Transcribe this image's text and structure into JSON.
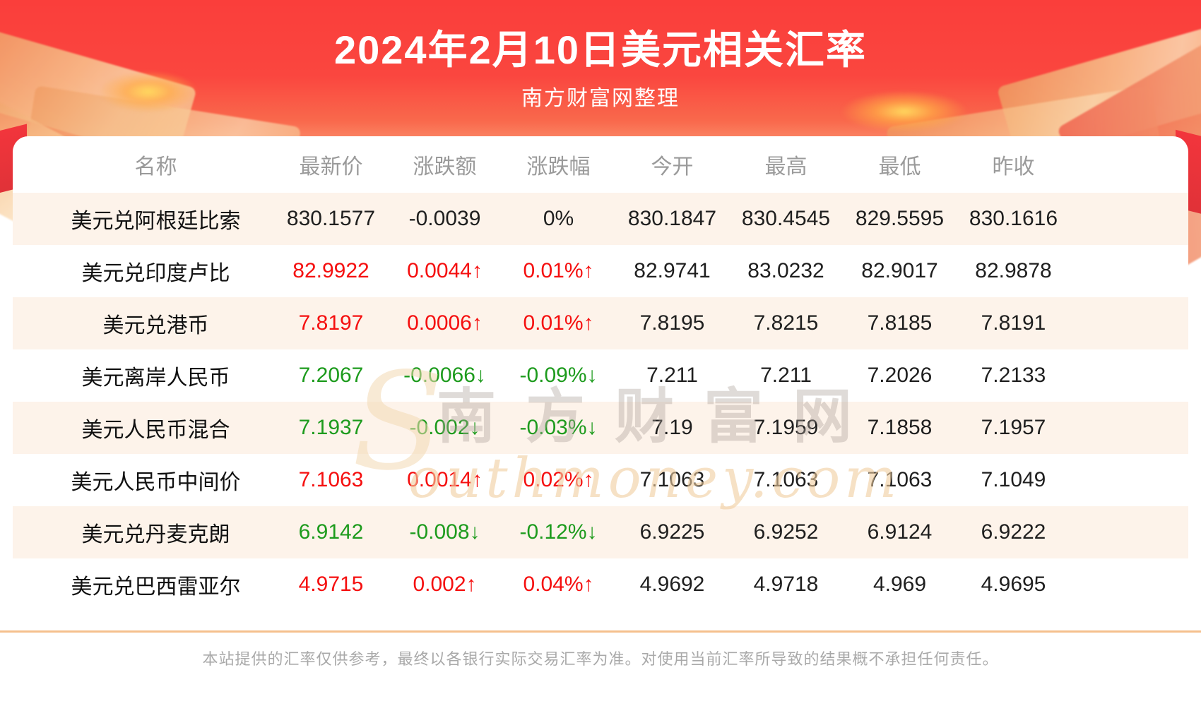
{
  "header": {
    "title": "2024年2月10日美元相关汇率",
    "subtitle": "南方财富网整理"
  },
  "table": {
    "columns": [
      "名称",
      "最新价",
      "涨跌额",
      "涨跌幅",
      "今开",
      "最高",
      "最低",
      "昨收"
    ],
    "rows": [
      {
        "name": "美元兑阿根廷比索",
        "last": "830.1577",
        "change": "-0.0039",
        "change_pct": "0%",
        "open": "830.1847",
        "high": "830.4545",
        "low": "829.5595",
        "prev_close": "830.1616",
        "trend": "flat"
      },
      {
        "name": "美元兑印度卢比",
        "last": "82.9922",
        "change": "0.0044↑",
        "change_pct": "0.01%↑",
        "open": "82.9741",
        "high": "83.0232",
        "low": "82.9017",
        "prev_close": "82.9878",
        "trend": "up"
      },
      {
        "name": "美元兑港币",
        "last": "7.8197",
        "change": "0.0006↑",
        "change_pct": "0.01%↑",
        "open": "7.8195",
        "high": "7.8215",
        "low": "7.8185",
        "prev_close": "7.8191",
        "trend": "up"
      },
      {
        "name": "美元离岸人民币",
        "last": "7.2067",
        "change": "-0.0066↓",
        "change_pct": "-0.09%↓",
        "open": "7.211",
        "high": "7.211",
        "low": "7.2026",
        "prev_close": "7.2133",
        "trend": "down"
      },
      {
        "name": "美元人民币混合",
        "last": "7.1937",
        "change": "-0.002↓",
        "change_pct": "-0.03%↓",
        "open": "7.19",
        "high": "7.1959",
        "low": "7.1858",
        "prev_close": "7.1957",
        "trend": "down"
      },
      {
        "name": "美元人民币中间价",
        "last": "7.1063",
        "change": "0.0014↑",
        "change_pct": "0.02%↑",
        "open": "7.1063",
        "high": "7.1063",
        "low": "7.1063",
        "prev_close": "7.1049",
        "trend": "up"
      },
      {
        "name": "美元兑丹麦克朗",
        "last": "6.9142",
        "change": "-0.008↓",
        "change_pct": "-0.12%↓",
        "open": "6.9225",
        "high": "6.9252",
        "low": "6.9124",
        "prev_close": "6.9222",
        "trend": "down"
      },
      {
        "name": "美元兑巴西雷亚尔",
        "last": "4.9715",
        "change": "0.002↑",
        "change_pct": "0.04%↑",
        "open": "4.9692",
        "high": "4.9718",
        "low": "4.969",
        "prev_close": "4.9695",
        "trend": "up"
      }
    ]
  },
  "watermark": {
    "initial": "S",
    "cn": "南方财富网",
    "en": "outhmoney.com"
  },
  "footer": {
    "disclaimer": "本站提供的汇率仅供参考，最终以各银行实际交易汇率为准。对使用当前汇率所导致的结果概不承担任何责任。"
  },
  "colors": {
    "hero_red": "#fa463f",
    "stripe": "#fdf3ea",
    "up": "#f50f0f",
    "down": "#1d9b1d",
    "neutral": "#1f1f1f",
    "header_text": "#9a9a9a",
    "divider": "#f5c08d"
  },
  "chart_data": {
    "type": "table",
    "title": "2024年2月10日美元相关汇率",
    "subtitle": "南方财富网整理",
    "columns": [
      "名称",
      "最新价",
      "涨跌额",
      "涨跌幅",
      "今开",
      "最高",
      "最低",
      "昨收"
    ],
    "rows": [
      [
        "美元兑阿根廷比索",
        830.1577,
        -0.0039,
        "0%",
        830.1847,
        830.4545,
        829.5595,
        830.1616
      ],
      [
        "美元兑印度卢比",
        82.9922,
        0.0044,
        "0.01%↑",
        82.9741,
        83.0232,
        82.9017,
        82.9878
      ],
      [
        "美元兑港币",
        7.8197,
        0.0006,
        "0.01%↑",
        7.8195,
        7.8215,
        7.8185,
        7.8191
      ],
      [
        "美元离岸人民币",
        7.2067,
        -0.0066,
        "-0.09%↓",
        7.211,
        7.211,
        7.2026,
        7.2133
      ],
      [
        "美元人民币混合",
        7.1937,
        -0.002,
        "-0.03%↓",
        7.19,
        7.1959,
        7.1858,
        7.1957
      ],
      [
        "美元人民币中间价",
        7.1063,
        0.0014,
        "0.02%↑",
        7.1063,
        7.1063,
        7.1063,
        7.1049
      ],
      [
        "美元兑丹麦克朗",
        6.9142,
        -0.008,
        "-0.12%↓",
        6.9225,
        6.9252,
        6.9124,
        6.9222
      ],
      [
        "美元兑巴西雷亚尔",
        4.9715,
        0.002,
        "0.04%↑",
        4.9692,
        4.9718,
        4.969,
        4.9695
      ]
    ]
  }
}
